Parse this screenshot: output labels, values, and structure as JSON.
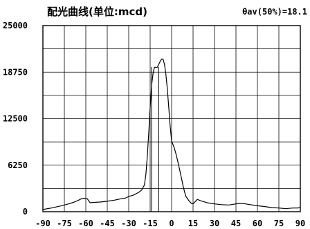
{
  "chart_data": {
    "type": "line",
    "title": "配光曲线(单位:mcd)",
    "annotation": "θav(50%)=18.1",
    "xlabel": "",
    "ylabel": "",
    "xlim": [
      -90,
      90
    ],
    "ylim": [
      0,
      25000
    ],
    "grid": true,
    "x_ticks": [
      -90,
      -75,
      -60,
      -45,
      -30,
      -15,
      0,
      15,
      30,
      45,
      60,
      75,
      90
    ],
    "y_ticks": [
      0,
      6250,
      12500,
      18750,
      25000
    ],
    "markers": [
      -14,
      -9
    ],
    "series": [
      {
        "x": [
          -90,
          -84,
          -78,
          -72,
          -68,
          -65,
          -63,
          -61,
          -59,
          -57,
          -55,
          -50,
          -45,
          -40,
          -35,
          -32,
          -30,
          -27,
          -25,
          -23,
          -21,
          -19,
          -18,
          -17,
          -16,
          -15,
          -14,
          -13,
          -12,
          -11,
          -10,
          -9,
          -8,
          -7,
          -6,
          -5,
          -4,
          -3,
          -2,
          -1,
          0,
          1,
          2,
          3,
          4,
          5,
          6,
          7,
          8,
          9,
          10,
          12,
          14,
          15,
          18,
          20,
          25,
          30,
          35,
          40,
          45,
          48,
          50,
          55,
          60,
          65,
          70,
          75,
          80,
          82,
          85,
          88,
          90
        ],
        "y": [
          300,
          500,
          750,
          1050,
          1300,
          1550,
          1750,
          1800,
          1750,
          1200,
          1250,
          1300,
          1400,
          1550,
          1750,
          1850,
          2050,
          2200,
          2400,
          2600,
          2900,
          3600,
          5000,
          7500,
          10500,
          14000,
          17000,
          18500,
          19400,
          19400,
          19400,
          19800,
          20200,
          20500,
          20500,
          19800,
          18500,
          16500,
          14000,
          11500,
          9500,
          9000,
          8500,
          7800,
          7000,
          6200,
          5300,
          4400,
          3500,
          2700,
          2050,
          1500,
          1100,
          1050,
          1650,
          1500,
          1200,
          1050,
          950,
          900,
          1050,
          1100,
          1100,
          950,
          800,
          700,
          550,
          500,
          400,
          450,
          500,
          500,
          550
        ]
      }
    ]
  }
}
